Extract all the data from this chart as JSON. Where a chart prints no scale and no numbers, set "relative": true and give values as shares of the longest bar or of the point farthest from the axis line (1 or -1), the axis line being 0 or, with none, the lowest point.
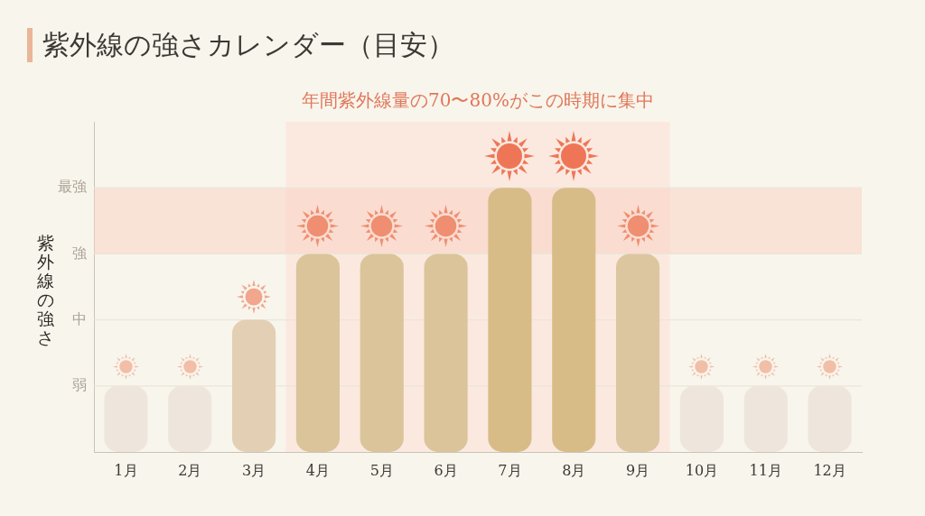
{
  "chart_data": {
    "type": "bar",
    "title": "紫外線の強さカレンダー（目安）",
    "ylabel": "紫外線の強さ",
    "relative": true,
    "x": [
      1,
      2,
      3,
      4,
      5,
      6,
      7,
      8,
      9,
      10,
      11,
      12
    ],
    "xlim": [
      0.5,
      12.5
    ],
    "xticks": [
      {
        "value": 1,
        "label": "1月"
      },
      {
        "value": 2,
        "label": "2月"
      },
      {
        "value": 3,
        "label": "3月"
      },
      {
        "value": 4,
        "label": "4月"
      },
      {
        "value": 5,
        "label": "5月"
      },
      {
        "value": 6,
        "label": "6月"
      },
      {
        "value": 7,
        "label": "7月"
      },
      {
        "value": 8,
        "label": "8月"
      },
      {
        "value": 9,
        "label": "9月"
      },
      {
        "value": 10,
        "label": "10月"
      },
      {
        "value": 11,
        "label": "11月"
      },
      {
        "value": 12,
        "label": "12月"
      }
    ],
    "values": [
      0.25,
      0.25,
      0.5,
      0.75,
      0.75,
      0.75,
      1,
      1,
      0.75,
      0.25,
      0.25,
      0.25
    ],
    "colors": [
      "#eee6dc",
      "#eee6dc",
      "#e3cfb4",
      "#dbc49a",
      "#dbc49a",
      "#dbc49a",
      "#d8bc88",
      "#d8bc88",
      "#dcc6a0",
      "#eee6dc",
      "#eee6dc",
      "#eee6dc"
    ],
    "ref_lines": [
      {
        "axis": "y",
        "value": 0.25,
        "label": "弱",
        "color": "#ebe5da"
      },
      {
        "axis": "y",
        "value": 0.5,
        "label": "中",
        "color": "#ebe5da"
      },
      {
        "axis": "y",
        "value": 0.75,
        "label": "強",
        "color": "#ebe5da"
      },
      {
        "axis": "y",
        "value": 1,
        "label": "最強",
        "color": "#ebe5da"
      }
    ],
    "bands": [
      {
        "axis": "x",
        "from": 3.5,
        "to": 9.5,
        "label": "年間紫外線量の70〜80%がこの時期に集中",
        "color": "#feddd4"
      },
      {
        "axis": "y",
        "from": 0.75,
        "to": 1,
        "color": "#facfc0"
      }
    ]
  }
}
